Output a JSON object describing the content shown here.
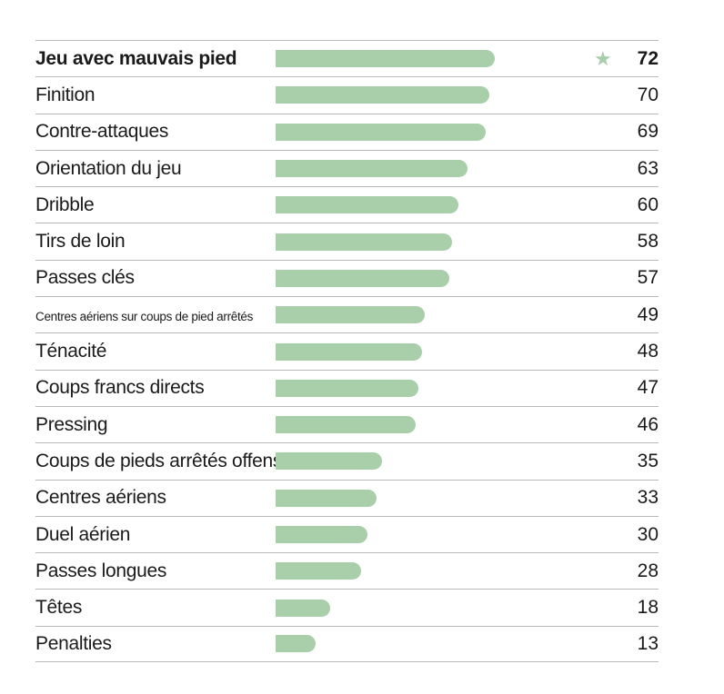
{
  "chart_data": {
    "type": "bar",
    "orientation": "horizontal",
    "categories": [
      "Jeu avec mauvais pied",
      "Finition",
      "Contre-attaques",
      "Orientation du jeu",
      "Dribble",
      "Tirs de loin",
      "Passes clés",
      "Centres aériens sur coups de pied arrêtés",
      "Ténacité",
      "Coups francs directs",
      "Pressing",
      "Coups de pieds arrêtés offensifs",
      "Centres aériens",
      "Duel aérien",
      "Passes longues",
      "Têtes",
      "Penalties"
    ],
    "values": [
      72,
      70,
      69,
      63,
      60,
      58,
      57,
      49,
      48,
      47,
      46,
      35,
      33,
      30,
      28,
      18,
      13
    ],
    "xlim": [
      0,
      100
    ],
    "highlight_index": 0,
    "highlight_icon": "star-icon",
    "bar_color": "#a9ceaa",
    "grid": false
  }
}
